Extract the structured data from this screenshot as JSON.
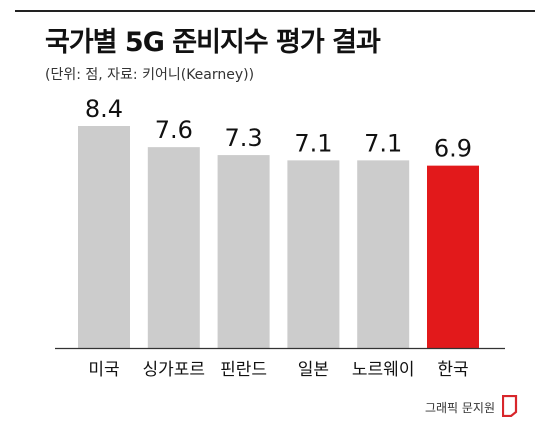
{
  "title": "국가별 5G 준비지수 평가 결과",
  "subtitle": "(단위: 점, 자료: 키어니(Kearney))",
  "footer": "그래픽 문지원",
  "chart_data": {
    "type": "bar",
    "categories": [
      "미국",
      "싱가포르",
      "핀란드",
      "일본",
      "노르웨이",
      "한국"
    ],
    "values": [
      8.4,
      7.6,
      7.3,
      7.1,
      7.1,
      6.9
    ],
    "value_labels": [
      "8.4",
      "7.6",
      "7.3",
      "7.1",
      "7.1",
      "6.9"
    ],
    "colors": [
      "#cccccc",
      "#cccccc",
      "#cccccc",
      "#cccccc",
      "#cccccc",
      "#e2191b"
    ],
    "highlight_color": "#e2191b",
    "bar_color": "#cccccc",
    "baseline_color": "#333333",
    "ylim": [
      0,
      8.4
    ]
  }
}
